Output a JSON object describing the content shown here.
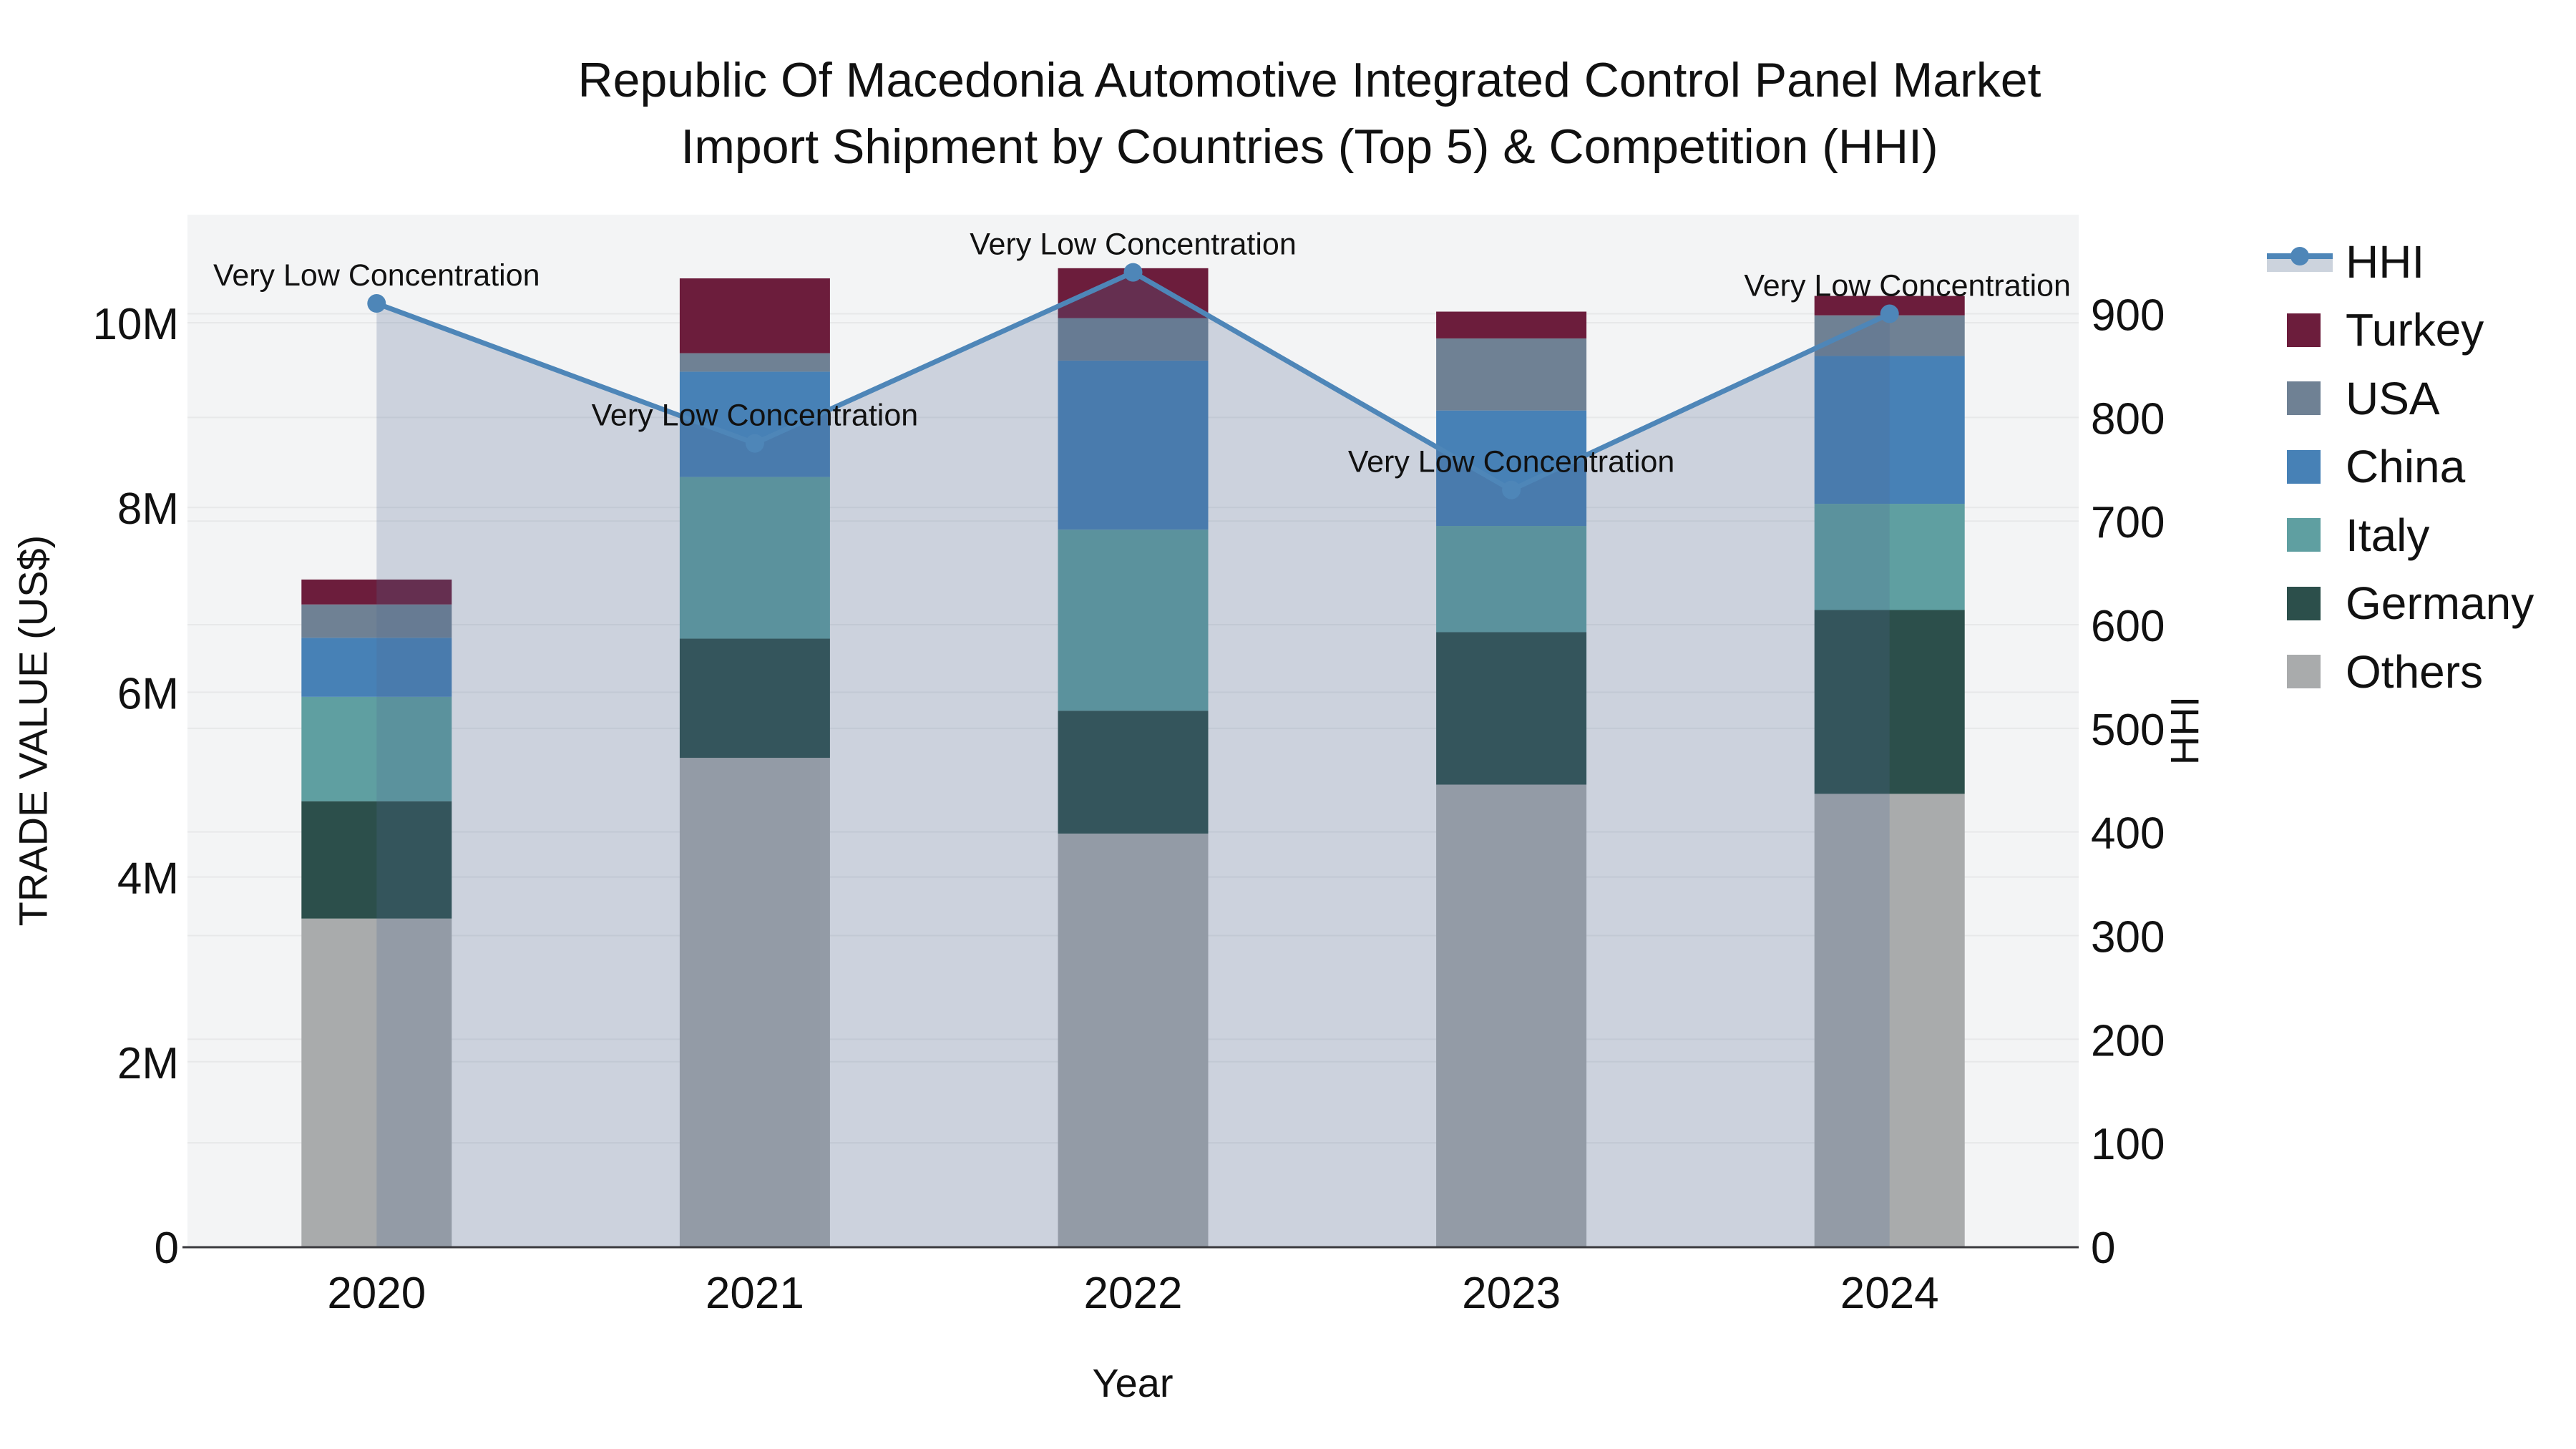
{
  "title": {
    "line1": "Republic Of Macedonia Automotive Integrated Control Panel Market",
    "line2": "Import Shipment by Countries (Top 5) & Competition (HHI)"
  },
  "chart_data": {
    "type": "stacked-bar+line",
    "x_labels": [
      "2020",
      "2021",
      "2022",
      "2023",
      "2024"
    ],
    "xlabel": "Year",
    "ylabel_left": "TRADE VALUE (US$)",
    "ylabel_right": "HHI",
    "left_axis": {
      "ticks": [
        "0",
        "2M",
        "4M",
        "6M",
        "8M",
        "10M"
      ],
      "tick_values": [
        0,
        2,
        4,
        6,
        8,
        10
      ],
      "units": "millions US$",
      "range": [
        0,
        11.2
      ]
    },
    "right_axis": {
      "ticks": [
        "0",
        "100",
        "200",
        "300",
        "400",
        "500",
        "600",
        "700",
        "800",
        "900"
      ],
      "tick_values": [
        0,
        100,
        200,
        300,
        400,
        500,
        600,
        700,
        800,
        900
      ],
      "range": [
        0,
        1000
      ]
    },
    "bar_series": [
      {
        "name": "Others",
        "color": "#a9abac",
        "values_musd": [
          3.55,
          5.29,
          4.47,
          5.0,
          4.9
        ]
      },
      {
        "name": "Germany",
        "color": "#2c4f4b",
        "values_musd": [
          1.27,
          1.29,
          1.33,
          1.65,
          1.99
        ]
      },
      {
        "name": "Italy",
        "color": "#5f9fa1",
        "values_musd": [
          1.13,
          1.75,
          1.96,
          1.15,
          1.15
        ]
      },
      {
        "name": "China",
        "color": "#4781b6",
        "values_musd": [
          0.64,
          1.14,
          1.83,
          1.25,
          1.6
        ]
      },
      {
        "name": "USA",
        "color": "#6f8194",
        "values_musd": [
          0.36,
          0.2,
          0.46,
          0.78,
          0.44
        ]
      },
      {
        "name": "Turkey",
        "color": "#6c1d3c",
        "values_musd": [
          0.27,
          0.81,
          0.54,
          0.29,
          0.21
        ]
      }
    ],
    "line_series": {
      "name": "HHI",
      "color": "#4e86b8",
      "fill_color": "rgba(80,104,148,0.24)",
      "values": [
        910,
        775,
        940,
        730,
        900
      ]
    },
    "annotations": [
      "Very Low Concentration",
      "Very Low Concentration",
      "Very Low Concentration",
      "Very Low Concentration",
      "Very Low Concentration"
    ],
    "legend": [
      {
        "label": "HHI",
        "type": "line",
        "color": "#4e86b8"
      },
      {
        "label": "Turkey",
        "type": "square",
        "color": "#6c1d3c"
      },
      {
        "label": "USA",
        "type": "square",
        "color": "#6f8194"
      },
      {
        "label": "China",
        "type": "square",
        "color": "#4781b6"
      },
      {
        "label": "Italy",
        "type": "square",
        "color": "#5f9fa1"
      },
      {
        "label": "Germany",
        "type": "square",
        "color": "#2c4f4b"
      },
      {
        "label": "Others",
        "type": "square",
        "color": "#a9abac"
      }
    ],
    "layout_hints": {
      "plot_bg": "#f3f4f5",
      "grid_color": "#e7e8e9",
      "axis_line_color": "#3a3a3e",
      "grid": "on",
      "legend_position": "right"
    }
  }
}
